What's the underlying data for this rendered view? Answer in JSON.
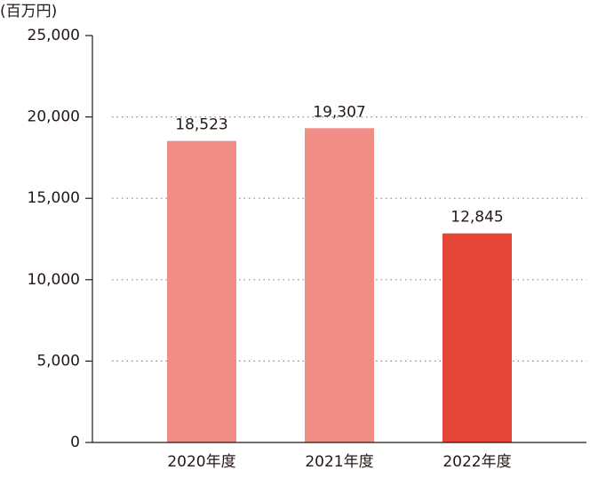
{
  "chart_data": {
    "type": "bar",
    "y_label": "(百万円)",
    "categories": [
      "2020年度",
      "2021年度",
      "2022年度"
    ],
    "values": [
      18523,
      19307,
      12845
    ],
    "value_labels": [
      "18,523",
      "19,307",
      "12,845"
    ],
    "colors": [
      "#f08e86",
      "#f08e86",
      "#e64637"
    ],
    "ylim": [
      0,
      25000
    ],
    "yticks": [
      0,
      {
        "value": 5000,
        "label": "5,000"
      },
      {
        "value": 10000,
        "label": "10,000"
      },
      {
        "value": 15000,
        "label": "15,000"
      },
      {
        "value": 20000,
        "label": "20,000"
      },
      {
        "value": 25000,
        "label": "25,000"
      }
    ],
    "grid": true
  }
}
